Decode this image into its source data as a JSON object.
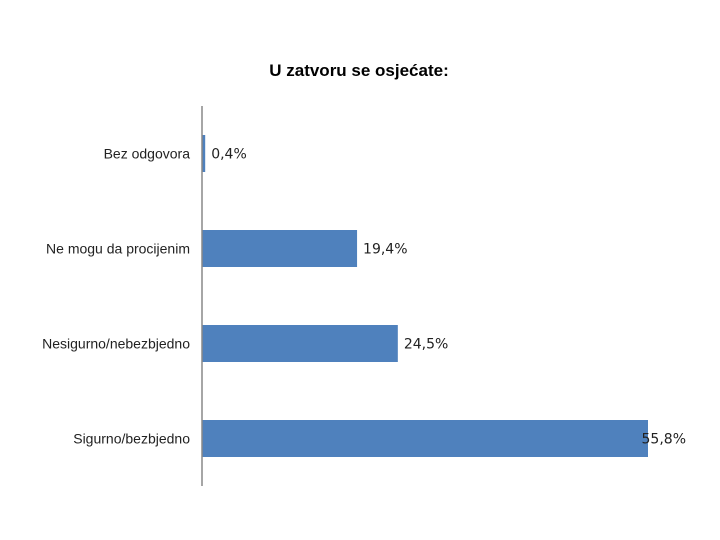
{
  "chart_data": {
    "type": "bar",
    "orientation": "horizontal",
    "title": "U zatvoru se osjećate:",
    "categories": [
      "Bez odgovora",
      "Ne mogu da procijenim",
      "Nesigurno/nebezbjedno",
      "Sigurno/bezbjedno"
    ],
    "values": [
      0.4,
      19.4,
      24.5,
      55.8
    ],
    "value_labels": [
      "0,4%",
      "19,4%",
      "24,5%",
      "55,8%"
    ],
    "unit": "%",
    "xlim": [
      0,
      56
    ],
    "xlabel": "",
    "ylabel": "",
    "grid": false,
    "legend": "none",
    "colors": {
      "bar": "#4f81bd",
      "axis": "#888888"
    }
  }
}
